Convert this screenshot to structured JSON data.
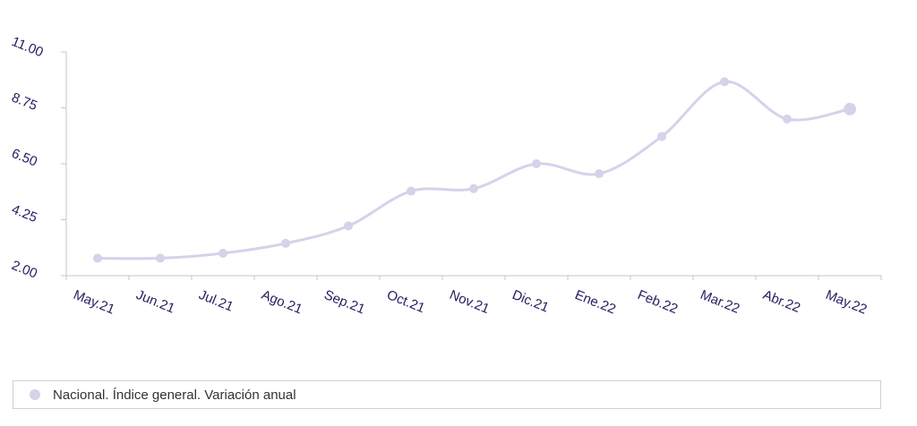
{
  "chart_data": {
    "type": "line",
    "categories": [
      "May.21",
      "Jun.21",
      "Jul.21",
      "Ago.21",
      "Sep.21",
      "Oct.21",
      "Nov.21",
      "Dic.21",
      "Ene.22",
      "Feb.22",
      "Mar.22",
      "Abr.22",
      "May.22"
    ],
    "series": [
      {
        "name": "Nacional. Índice general. Variación anual",
        "values": [
          2.7,
          2.7,
          2.9,
          3.3,
          4.0,
          5.4,
          5.5,
          6.5,
          6.1,
          7.6,
          9.8,
          8.3,
          8.7
        ],
        "color": "#d6d2ea"
      }
    ],
    "y_ticks": [
      "2.00",
      "4.25",
      "6.50",
      "8.75",
      "11.00"
    ],
    "ylim": [
      2.0,
      11.0
    ],
    "legend_position": "bottom",
    "grid": false,
    "axis_color": "#c4c4cc",
    "label_color": "#2a1a5e"
  }
}
